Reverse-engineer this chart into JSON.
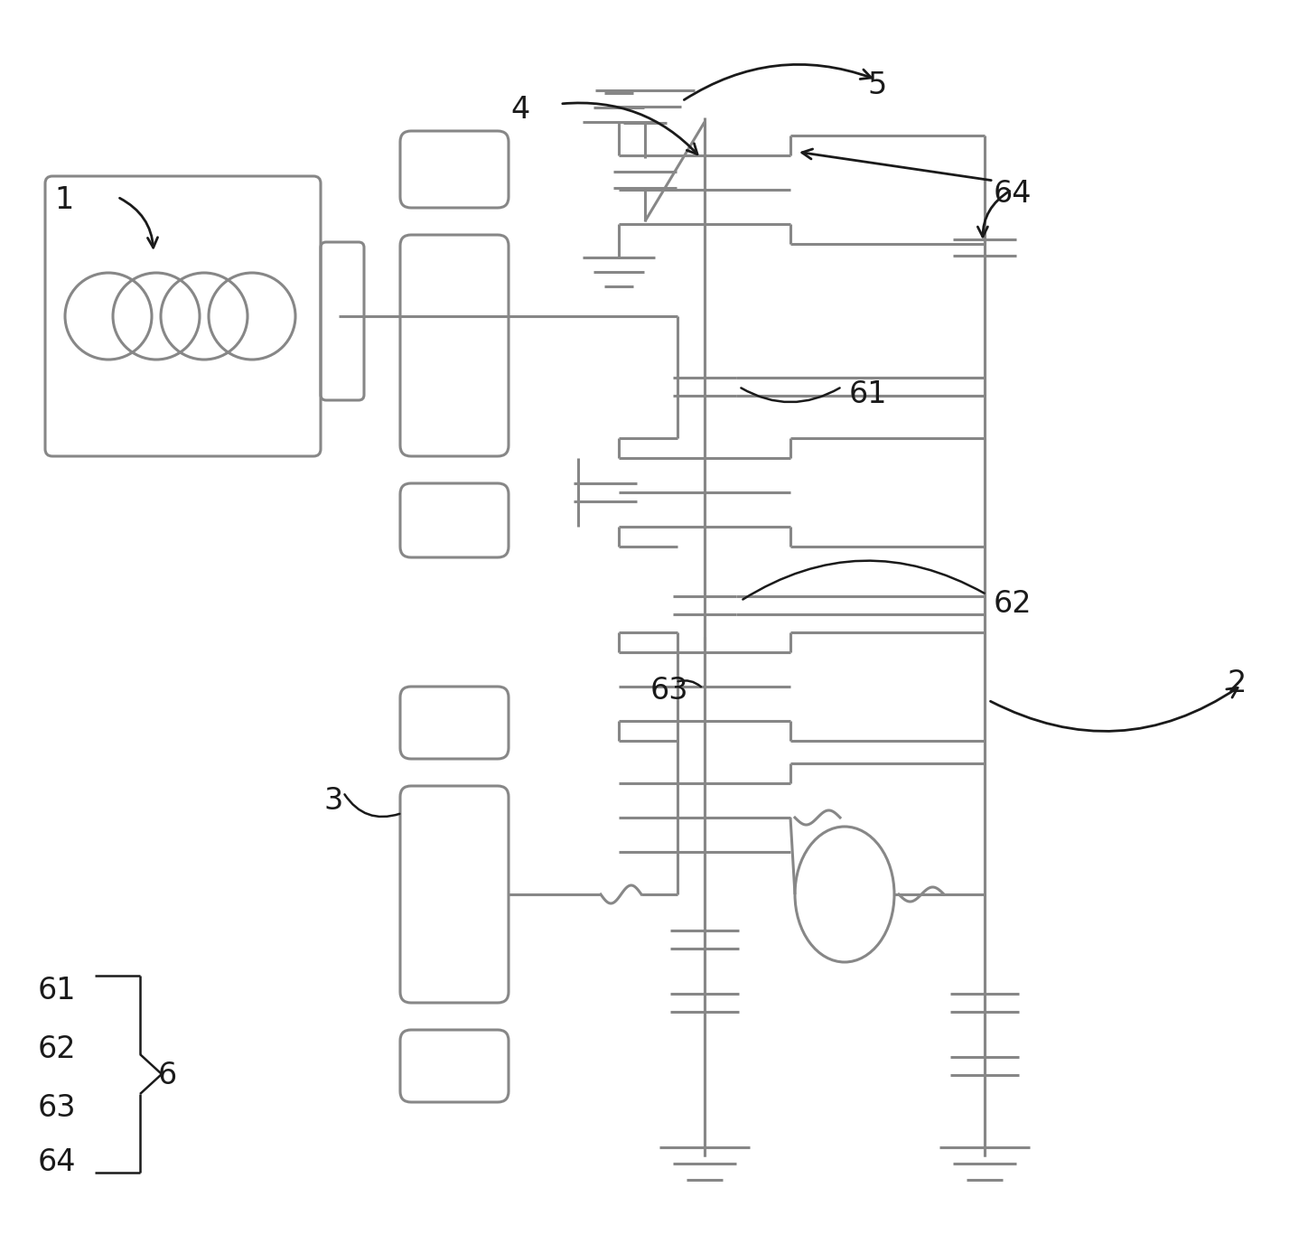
{
  "bg": "#ffffff",
  "lc": "#878787",
  "tc": "#1a1a1a",
  "lw": 2.2,
  "fs": 22,
  "figw": 14.48,
  "figh": 13.87,
  "dpi": 100
}
